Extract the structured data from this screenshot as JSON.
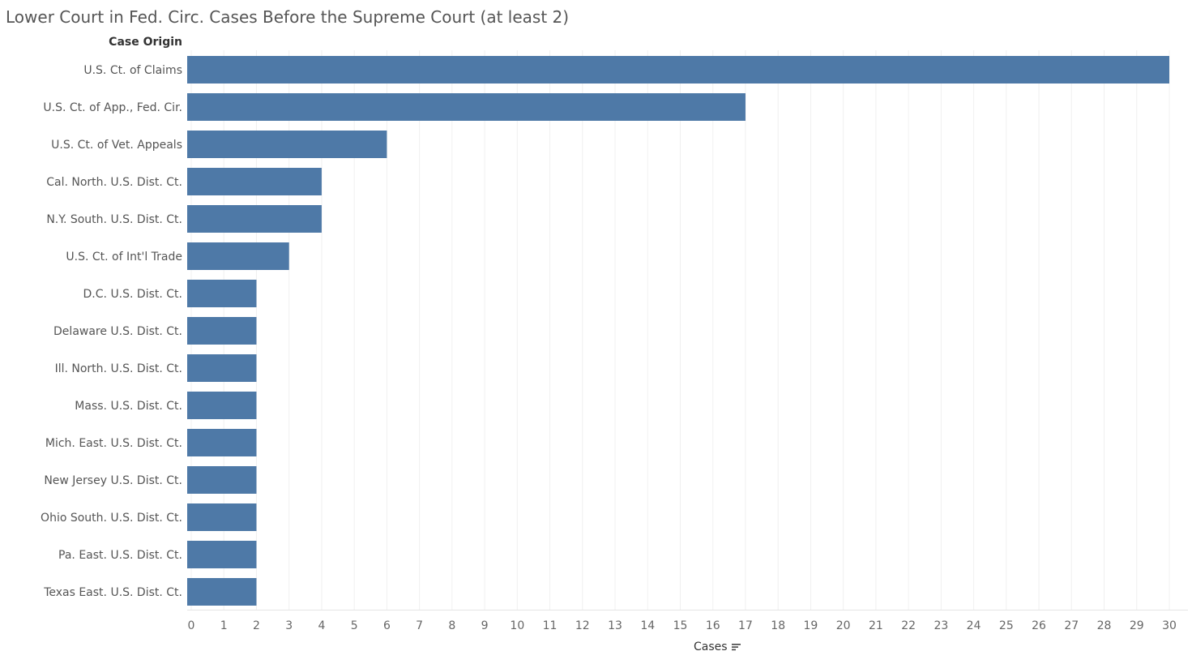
{
  "chart_data": {
    "type": "bar",
    "orientation": "horizontal",
    "title": "Lower Court in Fed. Circ. Cases Before the Supreme Court (at least 2)",
    "ylabel": "Case Origin",
    "xlabel": "Cases",
    "categories": [
      "U.S. Ct. of Claims",
      "U.S. Ct. of App., Fed. Cir.",
      "U.S. Ct. of Vet. Appeals",
      "Cal. North. U.S. Dist. Ct.",
      "N.Y. South. U.S. Dist. Ct.",
      "U.S. Ct. of Int'l Trade",
      "D.C. U.S. Dist. Ct.",
      "Delaware U.S. Dist. Ct.",
      "Ill. North. U.S. Dist. Ct.",
      "Mass. U.S. Dist. Ct.",
      "Mich. East. U.S. Dist. Ct.",
      "New Jersey U.S. Dist. Ct.",
      "Ohio South. U.S. Dist. Ct.",
      "Pa. East. U.S. Dist. Ct.",
      "Texas East. U.S. Dist. Ct."
    ],
    "values": [
      30,
      17,
      6,
      4,
      4,
      3,
      2,
      2,
      2,
      2,
      2,
      2,
      2,
      2,
      2
    ],
    "xlim": [
      0,
      30
    ],
    "xticks": [
      "0",
      "1",
      "2",
      "3",
      "4",
      "5",
      "6",
      "7",
      "8",
      "9",
      "10",
      "11",
      "12",
      "13",
      "14",
      "15",
      "16",
      "17",
      "18",
      "19",
      "20",
      "21",
      "22",
      "23",
      "24",
      "25",
      "26",
      "27",
      "28",
      "29",
      "30"
    ],
    "grid": "vertical",
    "bar_color": "#4e79a7",
    "grid_color": "#f0f0f0",
    "sort": "descending"
  },
  "icons": {
    "sort": "sort-descending-icon"
  }
}
